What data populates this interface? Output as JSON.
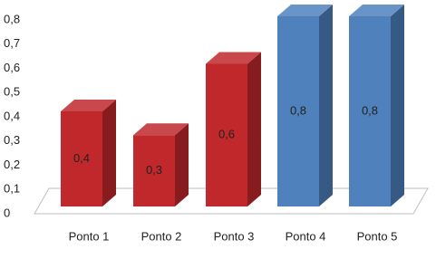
{
  "chart_data": {
    "type": "bar3d",
    "categories": [
      "Ponto 1",
      "Ponto 2",
      "Ponto 3",
      "Ponto 4",
      "Ponto 5"
    ],
    "values": [
      0.4,
      0.3,
      0.6,
      0.8,
      0.8
    ],
    "value_labels": [
      "0,4",
      "0,3",
      "0,6",
      "0,8",
      "0,8"
    ],
    "colors": [
      "#c0282b",
      "#c0282b",
      "#c0282b",
      "#4f81bd",
      "#4f81bd"
    ],
    "ylim": [
      0,
      0.8
    ],
    "yticks": [
      0,
      {
        "value": 0.1,
        "label": "0,1"
      },
      {
        "value": 0.2,
        "label": "0,2"
      },
      {
        "value": 0.3,
        "label": "0,3"
      },
      {
        "value": 0.4,
        "label": "0,4"
      },
      {
        "value": 0.5,
        "label": "0,5"
      },
      {
        "value": 0.6,
        "label": "0,6"
      },
      {
        "value": 0.7,
        "label": "0,7"
      },
      {
        "value": 0.8,
        "label": "0,8"
      }
    ],
    "grid": false
  }
}
